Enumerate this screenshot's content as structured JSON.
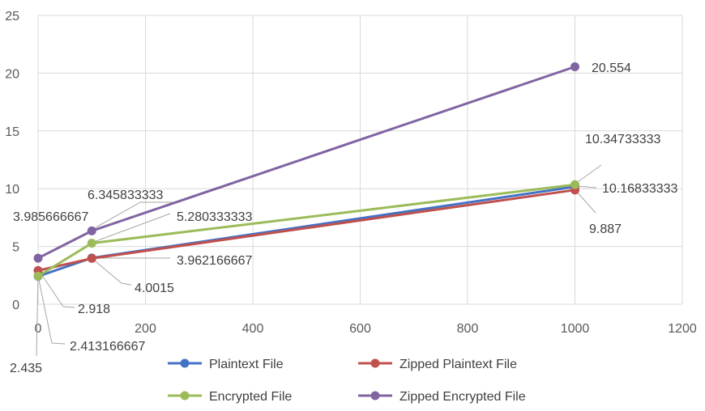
{
  "chart_data": {
    "type": "scatter",
    "mode": "lines+markers",
    "title": "",
    "xlabel": "",
    "ylabel": "",
    "xlim": [
      0,
      1200
    ],
    "ylim": [
      0,
      25
    ],
    "x_ticks": [
      0,
      200,
      400,
      600,
      800,
      1000,
      1200
    ],
    "y_ticks": [
      0,
      5,
      10,
      15,
      20,
      25
    ],
    "grid": true,
    "legend_position": "bottom",
    "series": [
      {
        "name": "Plaintext File",
        "color": "#4472c4",
        "x": [
          0,
          100,
          1000
        ],
        "y": [
          2.413166667,
          4.0015,
          10.16833333
        ]
      },
      {
        "name": "Zipped Plaintext File",
        "color": "#c0504d",
        "x": [
          0,
          100,
          1000
        ],
        "y": [
          2.918,
          3.962166667,
          9.887
        ]
      },
      {
        "name": "Encrypted File",
        "color": "#9bbb59",
        "x": [
          0,
          100,
          1000
        ],
        "y": [
          2.435,
          5.280333333,
          10.34733333
        ]
      },
      {
        "name": "Zipped Encrypted File",
        "color": "#8064a2",
        "x": [
          0,
          100,
          1000
        ],
        "y": [
          3.985666667,
          6.345833333,
          20.554
        ]
      }
    ],
    "data_labels": [
      {
        "series": 0,
        "point": 0,
        "text": "2.413166667"
      },
      {
        "series": 0,
        "point": 1,
        "text": "4.0015"
      },
      {
        "series": 0,
        "point": 2,
        "text": "10.16833333"
      },
      {
        "series": 1,
        "point": 0,
        "text": "2.918"
      },
      {
        "series": 1,
        "point": 1,
        "text": "3.962166667"
      },
      {
        "series": 1,
        "point": 2,
        "text": "9.887"
      },
      {
        "series": 2,
        "point": 0,
        "text": "2.435"
      },
      {
        "series": 2,
        "point": 1,
        "text": "5.280333333"
      },
      {
        "series": 2,
        "point": 2,
        "text": "10.34733333"
      },
      {
        "series": 3,
        "point": 0,
        "text": "3.985666667"
      },
      {
        "series": 3,
        "point": 1,
        "text": "6.345833333"
      },
      {
        "series": 3,
        "point": 2,
        "text": "20.554"
      }
    ]
  }
}
